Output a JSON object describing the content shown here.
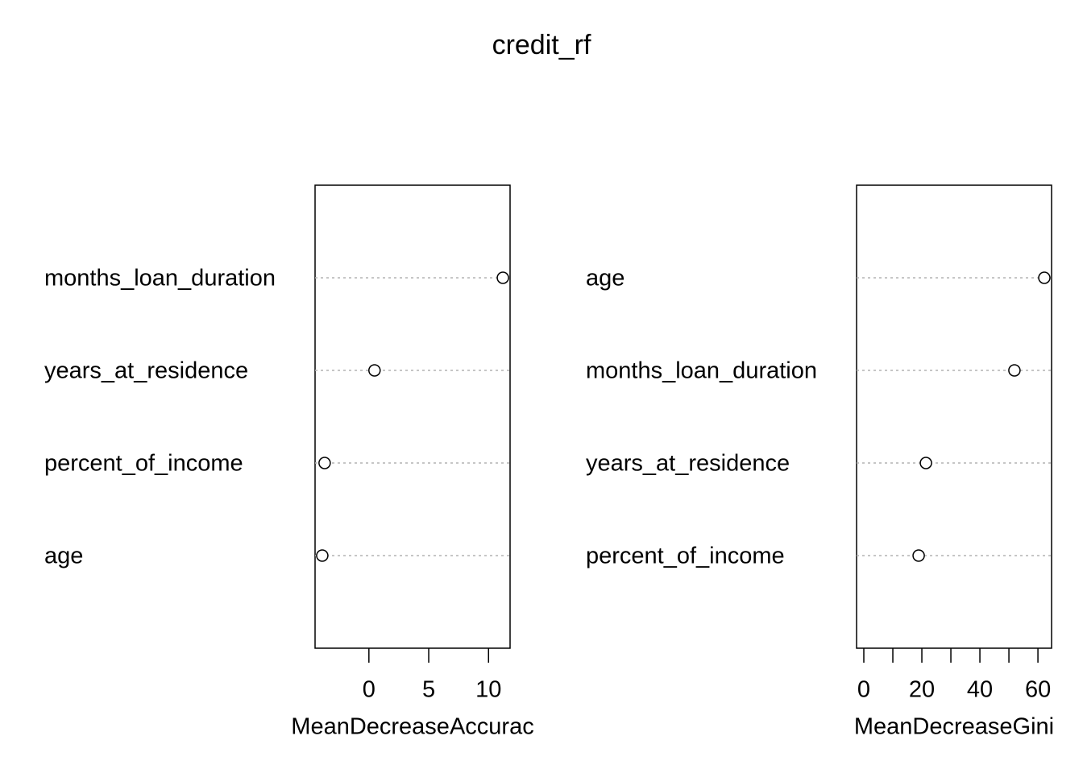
{
  "title": "credit_rf",
  "chart_data": [
    {
      "type": "dot",
      "categories": [
        "months_loan_duration",
        "years_at_residence",
        "percent_of_income",
        "age"
      ],
      "values": [
        11.2,
        0.47,
        -3.7,
        -3.9
      ],
      "color": "#000000",
      "xlabel": "MeanDecreaseAccurac",
      "xlim": [
        -4.5,
        11.8
      ],
      "xticks": [
        0,
        5,
        10
      ],
      "grid": true
    },
    {
      "type": "dot",
      "categories": [
        "age",
        "months_loan_duration",
        "years_at_residence",
        "percent_of_income"
      ],
      "values": [
        62.2,
        51.9,
        21.4,
        18.9
      ],
      "color": "#000000",
      "xlabel": "MeanDecreaseGini",
      "xlim": [
        -2.5,
        64.7
      ],
      "xticks": [
        0,
        {
          "value": 10,
          "label": null
        },
        20,
        {
          "value": 30,
          "label": null
        },
        40,
        {
          "value": 50,
          "label": null
        },
        60
      ],
      "grid": true
    }
  ]
}
